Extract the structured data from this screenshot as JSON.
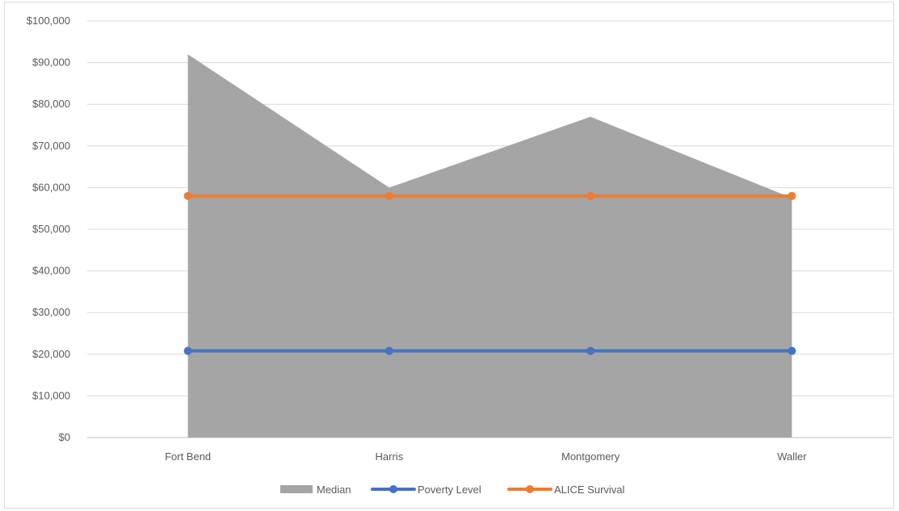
{
  "chart_data": {
    "type": "area",
    "categories": [
      "Fort Bend",
      "Harris",
      "Montgomery",
      "Waller"
    ],
    "series": [
      {
        "name": "Median",
        "type": "area",
        "color": "#a5a5a5",
        "values": [
          92000,
          60000,
          77000,
          57500
        ]
      },
      {
        "name": "Poverty Level",
        "type": "line",
        "color": "#4472c4",
        "values": [
          20800,
          20800,
          20800,
          20800
        ]
      },
      {
        "name": "ALICE Survival",
        "type": "line",
        "color": "#ed7d31",
        "values": [
          58000,
          58000,
          58000,
          58000
        ]
      }
    ],
    "ylim": [
      0,
      100000
    ],
    "y_ticks": [
      0,
      10000,
      20000,
      30000,
      40000,
      50000,
      60000,
      70000,
      80000,
      90000,
      100000
    ],
    "y_tick_labels": [
      "$0",
      "$10,000",
      "$20,000",
      "$30,000",
      "$40,000",
      "$50,000",
      "$60,000",
      "$70,000",
      "$80,000",
      "$90,000",
      "$100,000"
    ],
    "grid": true,
    "legend": {
      "position": "bottom",
      "entries": [
        "Median",
        "Poverty Level",
        "ALICE Survival"
      ]
    },
    "title": "",
    "xlabel": "",
    "ylabel": ""
  }
}
